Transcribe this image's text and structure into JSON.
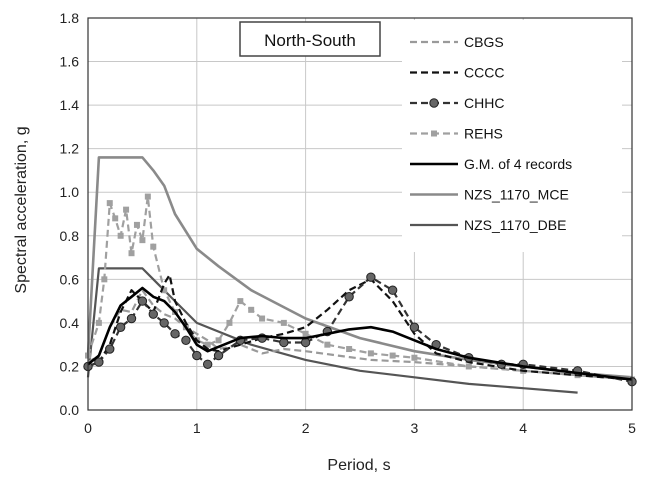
{
  "chart_data": {
    "type": "line",
    "annotation": "North-South",
    "xlabel": "Period, s",
    "ylabel": "Spectral acceleration, g",
    "xlim": [
      0,
      5
    ],
    "ylim": [
      0,
      1.8
    ],
    "xticks": [
      0,
      1,
      2,
      3,
      4,
      5
    ],
    "yticks": [
      "0.0",
      "0.2",
      "0.4",
      "0.6",
      "0.8",
      "1.0",
      "1.2",
      "1.4",
      "1.6",
      "1.8"
    ],
    "grid": true,
    "legend_position": "top-right",
    "series": [
      {
        "name": "CBGS",
        "color": "#9a9a9a",
        "style": "dash",
        "marker": "none",
        "points": [
          [
            0,
            0.22
          ],
          [
            0.1,
            0.25
          ],
          [
            0.2,
            0.38
          ],
          [
            0.3,
            0.46
          ],
          [
            0.4,
            0.45
          ],
          [
            0.5,
            0.55
          ],
          [
            0.6,
            0.48
          ],
          [
            0.7,
            0.44
          ],
          [
            0.8,
            0.42
          ],
          [
            0.9,
            0.38
          ],
          [
            1.0,
            0.35
          ],
          [
            1.1,
            0.32
          ],
          [
            1.2,
            0.28
          ],
          [
            1.4,
            0.3
          ],
          [
            1.6,
            0.26
          ],
          [
            1.8,
            0.28
          ],
          [
            2.0,
            0.27
          ],
          [
            2.3,
            0.25
          ],
          [
            2.6,
            0.23
          ],
          [
            3.0,
            0.22
          ],
          [
            3.5,
            0.2
          ],
          [
            4.0,
            0.18
          ],
          [
            4.5,
            0.16
          ],
          [
            5.0,
            0.14
          ]
        ]
      },
      {
        "name": "CCCC",
        "color": "#111111",
        "style": "dash",
        "marker": "none",
        "points": [
          [
            0,
            0.2
          ],
          [
            0.1,
            0.22
          ],
          [
            0.2,
            0.3
          ],
          [
            0.3,
            0.45
          ],
          [
            0.4,
            0.55
          ],
          [
            0.5,
            0.5
          ],
          [
            0.6,
            0.45
          ],
          [
            0.7,
            0.58
          ],
          [
            0.75,
            0.62
          ],
          [
            0.8,
            0.5
          ],
          [
            0.9,
            0.4
          ],
          [
            1.0,
            0.32
          ],
          [
            1.1,
            0.28
          ],
          [
            1.2,
            0.27
          ],
          [
            1.4,
            0.3
          ],
          [
            1.6,
            0.33
          ],
          [
            1.8,
            0.35
          ],
          [
            2.0,
            0.38
          ],
          [
            2.2,
            0.46
          ],
          [
            2.4,
            0.55
          ],
          [
            2.6,
            0.6
          ],
          [
            2.8,
            0.5
          ],
          [
            3.0,
            0.35
          ],
          [
            3.2,
            0.26
          ],
          [
            3.5,
            0.22
          ],
          [
            4.0,
            0.18
          ],
          [
            4.5,
            0.16
          ],
          [
            5.0,
            0.14
          ]
        ]
      },
      {
        "name": "CHHC",
        "color": "#333333",
        "style": "dash",
        "marker": "circle",
        "points": [
          [
            0,
            0.2
          ],
          [
            0.1,
            0.22
          ],
          [
            0.2,
            0.28
          ],
          [
            0.3,
            0.38
          ],
          [
            0.4,
            0.42
          ],
          [
            0.5,
            0.5
          ],
          [
            0.6,
            0.44
          ],
          [
            0.7,
            0.4
          ],
          [
            0.8,
            0.35
          ],
          [
            0.9,
            0.32
          ],
          [
            1.0,
            0.25
          ],
          [
            1.1,
            0.21
          ],
          [
            1.2,
            0.25
          ],
          [
            1.4,
            0.32
          ],
          [
            1.6,
            0.33
          ],
          [
            1.8,
            0.31
          ],
          [
            2.0,
            0.31
          ],
          [
            2.2,
            0.36
          ],
          [
            2.4,
            0.52
          ],
          [
            2.6,
            0.61
          ],
          [
            2.8,
            0.55
          ],
          [
            3.0,
            0.38
          ],
          [
            3.2,
            0.3
          ],
          [
            3.5,
            0.24
          ],
          [
            3.8,
            0.21
          ],
          [
            4.0,
            0.21
          ],
          [
            4.5,
            0.18
          ],
          [
            5.0,
            0.13
          ]
        ]
      },
      {
        "name": "REHS",
        "color": "#a0a0a0",
        "style": "dash",
        "marker": "square",
        "points": [
          [
            0,
            0.25
          ],
          [
            0.1,
            0.4
          ],
          [
            0.15,
            0.6
          ],
          [
            0.2,
            0.95
          ],
          [
            0.25,
            0.88
          ],
          [
            0.3,
            0.8
          ],
          [
            0.35,
            0.92
          ],
          [
            0.4,
            0.72
          ],
          [
            0.45,
            0.85
          ],
          [
            0.5,
            0.78
          ],
          [
            0.55,
            0.98
          ],
          [
            0.6,
            0.75
          ],
          [
            0.7,
            0.55
          ],
          [
            0.8,
            0.45
          ],
          [
            0.9,
            0.38
          ],
          [
            1.0,
            0.32
          ],
          [
            1.1,
            0.3
          ],
          [
            1.2,
            0.32
          ],
          [
            1.3,
            0.4
          ],
          [
            1.4,
            0.5
          ],
          [
            1.5,
            0.46
          ],
          [
            1.6,
            0.42
          ],
          [
            1.8,
            0.4
          ],
          [
            2.0,
            0.35
          ],
          [
            2.2,
            0.3
          ],
          [
            2.4,
            0.28
          ],
          [
            2.6,
            0.26
          ],
          [
            2.8,
            0.25
          ],
          [
            3.0,
            0.24
          ],
          [
            3.5,
            0.2
          ],
          [
            4.0,
            0.18
          ],
          [
            4.5,
            0.16
          ],
          [
            5.0,
            0.14
          ]
        ]
      },
      {
        "name": "G.M. of 4 records",
        "color": "#000000",
        "style": "solid",
        "width": 2.6,
        "marker": "none",
        "points": [
          [
            0,
            0.21
          ],
          [
            0.1,
            0.25
          ],
          [
            0.2,
            0.38
          ],
          [
            0.3,
            0.48
          ],
          [
            0.4,
            0.52
          ],
          [
            0.5,
            0.56
          ],
          [
            0.6,
            0.52
          ],
          [
            0.7,
            0.5
          ],
          [
            0.8,
            0.45
          ],
          [
            0.9,
            0.38
          ],
          [
            1.0,
            0.3
          ],
          [
            1.1,
            0.27
          ],
          [
            1.2,
            0.29
          ],
          [
            1.4,
            0.33
          ],
          [
            1.6,
            0.34
          ],
          [
            1.8,
            0.33
          ],
          [
            2.0,
            0.33
          ],
          [
            2.2,
            0.35
          ],
          [
            2.4,
            0.37
          ],
          [
            2.6,
            0.38
          ],
          [
            2.8,
            0.36
          ],
          [
            3.0,
            0.32
          ],
          [
            3.2,
            0.28
          ],
          [
            3.5,
            0.24
          ],
          [
            4.0,
            0.2
          ],
          [
            4.5,
            0.17
          ],
          [
            5.0,
            0.14
          ]
        ]
      },
      {
        "name": "NZS_1170_MCE",
        "color": "#8a8a8a",
        "style": "solid",
        "width": 2.6,
        "marker": "none",
        "points": [
          [
            0,
            0.25
          ],
          [
            0.1,
            1.16
          ],
          [
            0.5,
            1.16
          ],
          [
            0.6,
            1.1
          ],
          [
            0.7,
            1.03
          ],
          [
            0.8,
            0.9
          ],
          [
            1.0,
            0.74
          ],
          [
            1.2,
            0.66
          ],
          [
            1.5,
            0.55
          ],
          [
            2.0,
            0.42
          ],
          [
            2.5,
            0.33
          ],
          [
            3.0,
            0.27
          ],
          [
            3.5,
            0.23
          ],
          [
            4.0,
            0.2
          ],
          [
            4.5,
            0.17
          ],
          [
            5.0,
            0.15
          ]
        ]
      },
      {
        "name": "NZS_1170_DBE",
        "color": "#555555",
        "style": "solid",
        "width": 2.2,
        "marker": "none",
        "points": [
          [
            0,
            0.15
          ],
          [
            0.1,
            0.65
          ],
          [
            0.5,
            0.65
          ],
          [
            0.6,
            0.6
          ],
          [
            0.8,
            0.5
          ],
          [
            1.0,
            0.4
          ],
          [
            1.5,
            0.3
          ],
          [
            2.0,
            0.23
          ],
          [
            2.5,
            0.18
          ],
          [
            3.0,
            0.15
          ],
          [
            3.5,
            0.12
          ],
          [
            4.0,
            0.1
          ],
          [
            4.5,
            0.08
          ]
        ]
      }
    ]
  }
}
